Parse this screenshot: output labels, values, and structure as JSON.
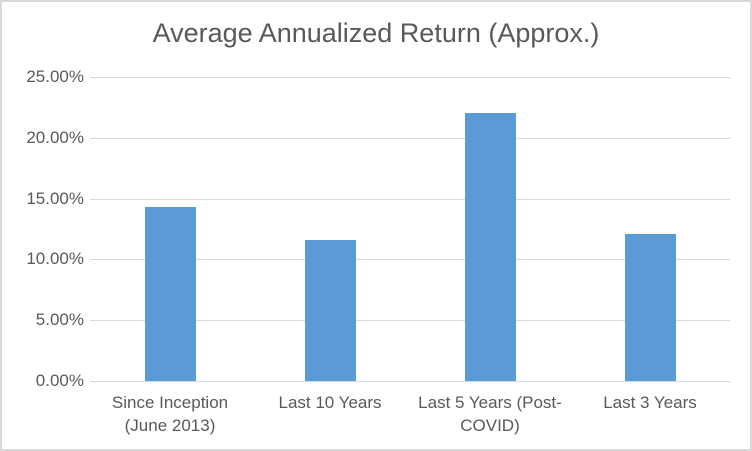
{
  "window": {
    "background": "#ffffff",
    "border_color": "#d9d9d9"
  },
  "chart_data": {
    "type": "bar",
    "title": "Average Annualized Return (Approx.)",
    "categories": [
      "Since Inception (June 2013)",
      "Last 10 Years",
      "Last 5 Years (Post-COVID)",
      "Last 3 Years"
    ],
    "values": [
      14.3,
      11.6,
      22.0,
      12.1
    ],
    "unit": "%",
    "xlabel": "",
    "ylabel": "",
    "ylim": [
      0,
      25
    ],
    "ytick_step": 5,
    "ytick_labels_top_to_bottom": [
      "25.00%",
      "20.00%",
      "15.00%",
      "10.00%",
      "5.00%",
      "0.00%"
    ],
    "grid": true,
    "legend": false,
    "bar_color": "#5b9bd5",
    "gridline_color": "#d9d9d9",
    "axis_line_color": "#d9d9d9",
    "text_color": "#595959",
    "title_color": "#595959"
  }
}
